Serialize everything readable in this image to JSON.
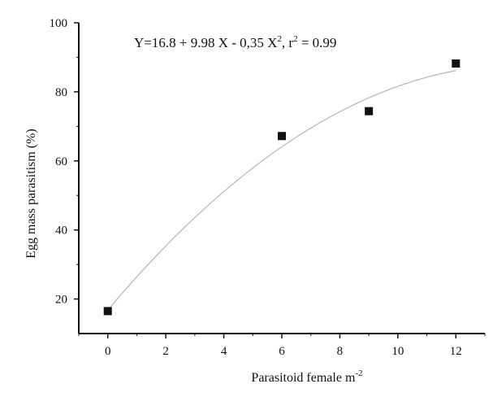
{
  "chart_data": {
    "type": "scatter",
    "xlabel": "Parasitoid female m",
    "xlabel_sup": "-2",
    "ylabel": "Egg mass parasitism (%)",
    "xlim": [
      -1,
      13
    ],
    "ylim": [
      10,
      100
    ],
    "x_ticks": [
      0,
      2,
      4,
      6,
      8,
      10,
      12
    ],
    "y_ticks": [
      20,
      40,
      60,
      80,
      100
    ],
    "grid": false,
    "points": [
      {
        "x": 0,
        "y": 16.5
      },
      {
        "x": 6,
        "y": 67.2
      },
      {
        "x": 9,
        "y": 74.4
      },
      {
        "x": 12,
        "y": 88.2
      }
    ],
    "fit": {
      "type": "quadratic",
      "intercept": 16.8,
      "b1": 9.98,
      "b2": -0.35,
      "x_range": [
        0,
        12
      ],
      "color": "#b5b5b5"
    },
    "annotation": {
      "y_part": "Y=16.8 + 9.98 X - 0,35 X",
      "sup1": "2",
      "mid_part": ", r",
      "sup2": "2",
      "end_part": " = 0.99"
    },
    "marker_color": "#111111"
  }
}
